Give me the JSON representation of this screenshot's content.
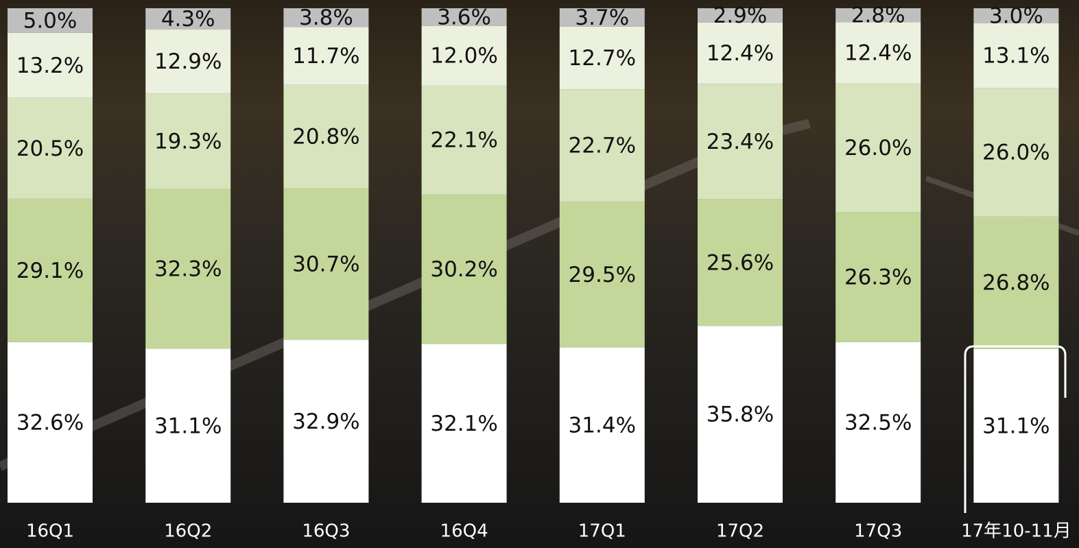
{
  "chart_data": {
    "type": "stacked-bar",
    "categories": [
      "16Q1",
      "16Q2",
      "16Q3",
      "16Q4",
      "17Q1",
      "17Q2",
      "17Q3",
      "17年10-11月"
    ],
    "series": [
      {
        "color": "#ffffff",
        "values": [
          32.6,
          31.1,
          32.9,
          32.1,
          31.4,
          35.8,
          32.5,
          31.1
        ],
        "value_labels": [
          "32.6%",
          "31.1%",
          "32.9%",
          "32.1%",
          "31.4%",
          "35.8%",
          "32.5%",
          "31.1%"
        ]
      },
      {
        "color": "#c4d79b",
        "values": [
          29.1,
          32.3,
          30.7,
          30.2,
          29.5,
          25.6,
          26.3,
          26.8
        ],
        "value_labels": [
          "29.1%",
          "32.3%",
          "30.7%",
          "30.2%",
          "29.5%",
          "25.6%",
          "26.3%",
          "26.8%"
        ]
      },
      {
        "color": "#d7e4bd",
        "values": [
          20.5,
          19.3,
          20.8,
          22.1,
          22.7,
          23.4,
          26.0,
          26.0
        ],
        "value_labels": [
          "20.5%",
          "19.3%",
          "20.8%",
          "22.1%",
          "22.7%",
          "23.4%",
          "26.0%",
          "26.0%"
        ]
      },
      {
        "color": "#ebf1de",
        "values": [
          13.2,
          12.9,
          11.7,
          12.0,
          12.7,
          12.4,
          12.4,
          13.1
        ],
        "value_labels": [
          "13.2%",
          "12.9%",
          "11.7%",
          "12.0%",
          "12.7%",
          "12.4%",
          "12.4%",
          "13.1%"
        ]
      },
      {
        "color": "#bfbfbf",
        "values": [
          5.0,
          4.3,
          3.8,
          3.6,
          3.7,
          2.9,
          2.8,
          3.0
        ],
        "value_labels": [
          "5.0%",
          "4.3%",
          "3.8%",
          "3.6%",
          "3.7%",
          "2.9%",
          "2.8%",
          "3.0%"
        ]
      }
    ]
  }
}
